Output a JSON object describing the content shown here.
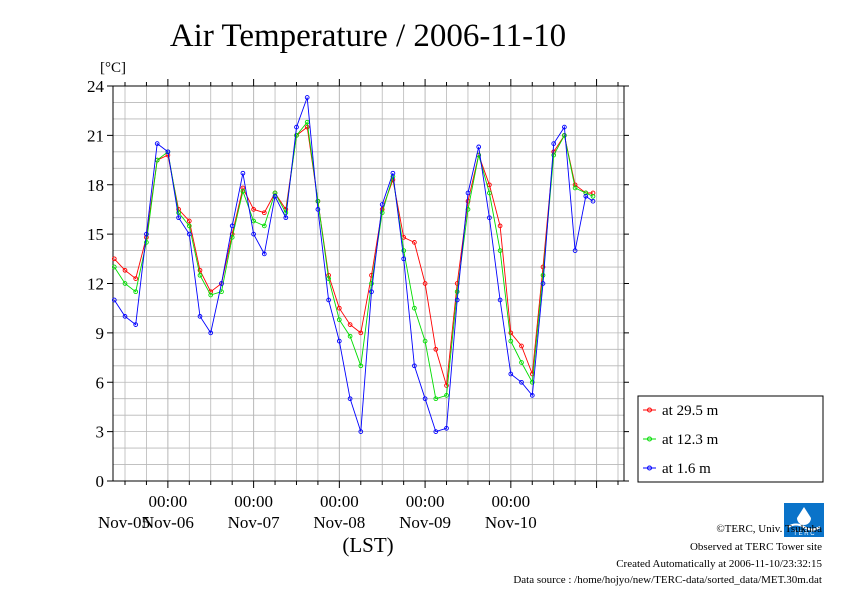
{
  "chart_data": {
    "type": "line",
    "title": "Air Temperature / 2006-11-10",
    "unit": "[°C]",
    "xlabel": "(LST)",
    "ylim": [
      0,
      24
    ],
    "yticks": [
      "0",
      "3",
      "6",
      "9",
      "12",
      "15",
      "18",
      "21",
      "24"
    ],
    "xlim_days": [
      -0.64,
      5.32
    ],
    "xticks": [
      {
        "day": 0,
        "time": "00:00",
        "date": "Nov-06"
      },
      {
        "day": 1,
        "time": "00:00",
        "date": "Nov-07"
      },
      {
        "day": 2,
        "time": "00:00",
        "date": "Nov-08"
      },
      {
        "day": 3,
        "time": "00:00",
        "date": "Nov-09"
      },
      {
        "day": 4,
        "time": "00:00",
        "date": "Nov-10"
      }
    ],
    "left_date": "Nov-05",
    "grid": true,
    "legend_position": "right",
    "series": [
      {
        "name": "at 29.5 m",
        "color": "#ff0000",
        "x": [
          "2006-11-05 09:00",
          "2006-11-05 12:00",
          "2006-11-05 15:00",
          "2006-11-05 18:00",
          "2006-11-05 21:00",
          "2006-11-06 00:00",
          "2006-11-06 03:00",
          "2006-11-06 06:00",
          "2006-11-06 09:00",
          "2006-11-06 12:00",
          "2006-11-06 15:00",
          "2006-11-06 18:00",
          "2006-11-06 21:00",
          "2006-11-07 00:00",
          "2006-11-07 03:00",
          "2006-11-07 06:00",
          "2006-11-07 09:00",
          "2006-11-07 12:00",
          "2006-11-07 15:00",
          "2006-11-07 18:00",
          "2006-11-07 21:00",
          "2006-11-08 00:00",
          "2006-11-08 03:00",
          "2006-11-08 06:00",
          "2006-11-08 09:00",
          "2006-11-08 12:00",
          "2006-11-08 15:00",
          "2006-11-08 18:00",
          "2006-11-08 21:00",
          "2006-11-09 00:00",
          "2006-11-09 03:00",
          "2006-11-09 06:00",
          "2006-11-09 09:00",
          "2006-11-09 12:00",
          "2006-11-09 15:00",
          "2006-11-09 18:00",
          "2006-11-09 21:00",
          "2006-11-10 00:00",
          "2006-11-10 03:00",
          "2006-11-10 06:00",
          "2006-11-10 09:00",
          "2006-11-10 12:00",
          "2006-11-10 15:00",
          "2006-11-10 18:00",
          "2006-11-10 21:00",
          "2006-11-10 23:00"
        ],
        "y": [
          13.5,
          12.8,
          12.3,
          14.8,
          19.5,
          19.8,
          16.5,
          15.8,
          12.8,
          11.5,
          12.0,
          15.0,
          17.8,
          16.5,
          16.3,
          17.5,
          16.5,
          21.0,
          21.5,
          17.0,
          12.5,
          10.5,
          9.5,
          9.0,
          12.5,
          16.5,
          18.3,
          14.8,
          14.5,
          12.0,
          8.0,
          5.8,
          12.0,
          17.0,
          19.8,
          18.0,
          15.5,
          9.0,
          8.2,
          6.5,
          13.0,
          20.0,
          21.0,
          18.0,
          17.5,
          17.5
        ]
      },
      {
        "name": "at 12.3 m",
        "color": "#00dd00",
        "x": [
          "2006-11-05 09:00",
          "2006-11-05 12:00",
          "2006-11-05 15:00",
          "2006-11-05 18:00",
          "2006-11-05 21:00",
          "2006-11-06 00:00",
          "2006-11-06 03:00",
          "2006-11-06 06:00",
          "2006-11-06 09:00",
          "2006-11-06 12:00",
          "2006-11-06 15:00",
          "2006-11-06 18:00",
          "2006-11-06 21:00",
          "2006-11-07 00:00",
          "2006-11-07 03:00",
          "2006-11-07 06:00",
          "2006-11-07 09:00",
          "2006-11-07 12:00",
          "2006-11-07 15:00",
          "2006-11-07 18:00",
          "2006-11-07 21:00",
          "2006-11-08 00:00",
          "2006-11-08 03:00",
          "2006-11-08 06:00",
          "2006-11-08 09:00",
          "2006-11-08 12:00",
          "2006-11-08 15:00",
          "2006-11-08 18:00",
          "2006-11-08 21:00",
          "2006-11-09 00:00",
          "2006-11-09 03:00",
          "2006-11-09 06:00",
          "2006-11-09 09:00",
          "2006-11-09 12:00",
          "2006-11-09 15:00",
          "2006-11-09 18:00",
          "2006-11-09 21:00",
          "2006-11-10 00:00",
          "2006-11-10 03:00",
          "2006-11-10 06:00",
          "2006-11-10 09:00",
          "2006-11-10 12:00",
          "2006-11-10 15:00",
          "2006-11-10 18:00",
          "2006-11-10 21:00",
          "2006-11-10 23:00"
        ],
        "y": [
          13.0,
          12.0,
          11.5,
          14.5,
          19.5,
          20.0,
          16.3,
          15.5,
          12.5,
          11.3,
          11.5,
          14.8,
          17.6,
          15.8,
          15.5,
          17.5,
          16.3,
          21.0,
          21.8,
          17.0,
          12.3,
          9.8,
          8.8,
          7.0,
          12.0,
          16.3,
          18.5,
          14.0,
          10.5,
          8.5,
          5.0,
          5.2,
          11.5,
          16.5,
          19.8,
          17.5,
          14.0,
          8.5,
          7.2,
          6.0,
          12.5,
          19.8,
          21.0,
          17.8,
          17.5,
          17.3
        ]
      },
      {
        "name": "at 1.6 m",
        "color": "#0000ff",
        "x": [
          "2006-11-05 09:00",
          "2006-11-05 12:00",
          "2006-11-05 15:00",
          "2006-11-05 18:00",
          "2006-11-05 21:00",
          "2006-11-06 00:00",
          "2006-11-06 03:00",
          "2006-11-06 06:00",
          "2006-11-06 09:00",
          "2006-11-06 12:00",
          "2006-11-06 15:00",
          "2006-11-06 18:00",
          "2006-11-06 21:00",
          "2006-11-07 00:00",
          "2006-11-07 03:00",
          "2006-11-07 06:00",
          "2006-11-07 09:00",
          "2006-11-07 12:00",
          "2006-11-07 15:00",
          "2006-11-07 18:00",
          "2006-11-07 21:00",
          "2006-11-08 00:00",
          "2006-11-08 03:00",
          "2006-11-08 06:00",
          "2006-11-08 09:00",
          "2006-11-08 12:00",
          "2006-11-08 15:00",
          "2006-11-08 18:00",
          "2006-11-08 21:00",
          "2006-11-09 00:00",
          "2006-11-09 03:00",
          "2006-11-09 06:00",
          "2006-11-09 09:00",
          "2006-11-09 12:00",
          "2006-11-09 15:00",
          "2006-11-09 18:00",
          "2006-11-09 21:00",
          "2006-11-10 00:00",
          "2006-11-10 03:00",
          "2006-11-10 06:00",
          "2006-11-10 09:00",
          "2006-11-10 12:00",
          "2006-11-10 15:00",
          "2006-11-10 18:00",
          "2006-11-10 21:00",
          "2006-11-10 23:00"
        ],
        "y": [
          11.0,
          10.0,
          9.5,
          15.0,
          20.5,
          20.0,
          16.0,
          15.0,
          10.0,
          9.0,
          12.0,
          15.5,
          18.7,
          15.0,
          13.8,
          17.3,
          16.0,
          21.5,
          23.3,
          16.5,
          11.0,
          8.5,
          5.0,
          3.0,
          11.5,
          16.8,
          18.7,
          13.5,
          7.0,
          5.0,
          3.0,
          3.2,
          11.0,
          17.5,
          20.3,
          16.0,
          11.0,
          6.5,
          6.0,
          5.2,
          12.0,
          20.5,
          21.5,
          14.0,
          17.3,
          17.0
        ]
      }
    ]
  },
  "footer": {
    "copyright": "©TERC, Univ. Tsukuba",
    "observed": "Observed at TERC Tower site",
    "created": "Created Automatically at 2006-11-10/23:32:15",
    "source": "Data source : /home/hojyo/new/TERC-data/sorted_data/MET.30m.dat",
    "logo_text": "T E R C"
  }
}
